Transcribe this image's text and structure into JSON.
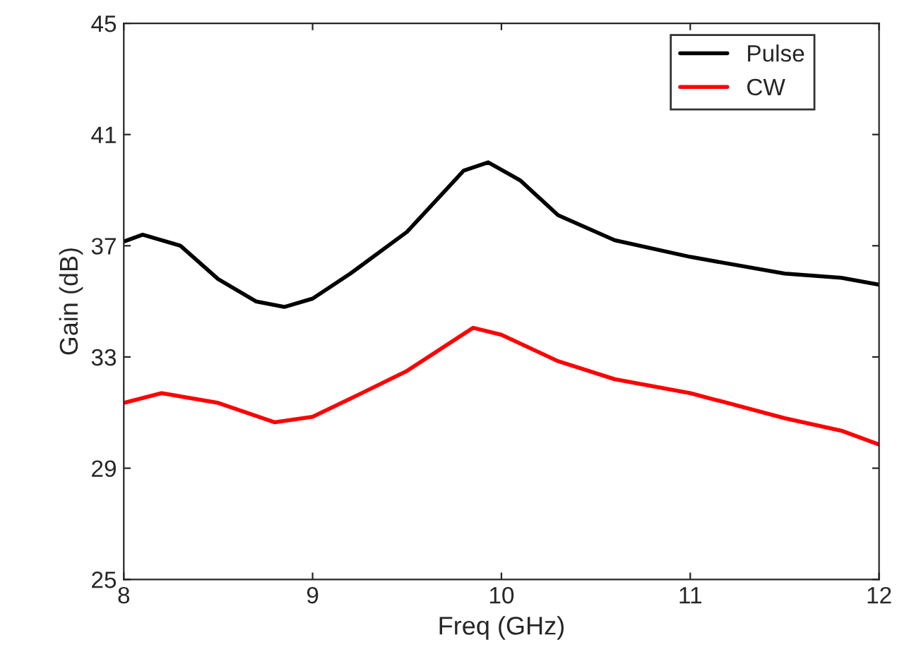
{
  "chart_data": {
    "type": "line",
    "xlabel": "Freq (GHz)",
    "ylabel": "Gain (dB)",
    "xlim": [
      8,
      12
    ],
    "xticks": [
      8,
      9,
      10,
      11,
      12
    ],
    "ylim": [
      25,
      45
    ],
    "yticks": [
      25,
      29,
      33,
      37,
      41,
      45
    ],
    "grid": false,
    "legend": "top right",
    "marker": "none",
    "line_style": "solid",
    "series": [
      {
        "name": "Pulse",
        "color": "#000000",
        "x": [
          8,
          8.1,
          8.3,
          8.5,
          8.7,
          8.85,
          9,
          9.2,
          9.5,
          9.8,
          9.93,
          10.1,
          10.3,
          10.6,
          11,
          11.5,
          11.8,
          12
        ],
        "values": [
          37.15,
          37.4,
          37.0,
          35.8,
          35.0,
          34.8,
          35.1,
          36.0,
          37.5,
          39.7,
          40.0,
          39.35,
          38.1,
          37.2,
          36.6,
          36.0,
          35.85,
          35.6
        ]
      },
      {
        "name": "CW",
        "color": "#ff0000",
        "x": [
          8,
          8.2,
          8.5,
          8.8,
          9,
          9.2,
          9.5,
          9.85,
          10,
          10.3,
          10.6,
          11,
          11.5,
          11.8,
          12
        ],
        "values": [
          31.35,
          31.7,
          31.35,
          30.65,
          30.85,
          31.5,
          32.5,
          34.05,
          33.8,
          32.85,
          32.2,
          31.7,
          30.8,
          30.35,
          29.85
        ]
      }
    ]
  }
}
